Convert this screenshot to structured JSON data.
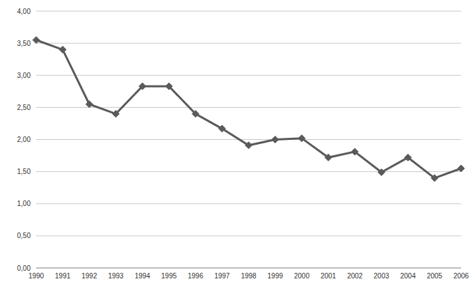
{
  "chart_data": {
    "type": "line",
    "categories": [
      "1990",
      "1991",
      "1992",
      "1993",
      "1994",
      "1995",
      "1996",
      "1997",
      "1998",
      "1999",
      "2000",
      "2001",
      "2002",
      "2003",
      "2004",
      "2005",
      "2006"
    ],
    "values": [
      3.55,
      3.4,
      2.55,
      2.4,
      2.83,
      2.83,
      2.4,
      2.17,
      1.91,
      2.0,
      2.02,
      1.72,
      1.81,
      1.49,
      1.72,
      1.4,
      1.55
    ],
    "color": "#5a5a5a",
    "marker": "diamond",
    "ylim": [
      0,
      4
    ],
    "yticks": [
      {
        "value": 0,
        "label": "0,00"
      },
      {
        "value": 0.5,
        "label": "0,50"
      },
      {
        "value": 1,
        "label": "1,00"
      },
      {
        "value": 1.5,
        "label": "1,50"
      },
      {
        "value": 2,
        "label": "2,00"
      },
      {
        "value": 2.5,
        "label": "2,50"
      },
      {
        "value": 3,
        "label": "3,00"
      },
      {
        "value": 3.5,
        "label": "3,50"
      },
      {
        "value": 4,
        "label": "4,00"
      }
    ],
    "grid": true
  }
}
